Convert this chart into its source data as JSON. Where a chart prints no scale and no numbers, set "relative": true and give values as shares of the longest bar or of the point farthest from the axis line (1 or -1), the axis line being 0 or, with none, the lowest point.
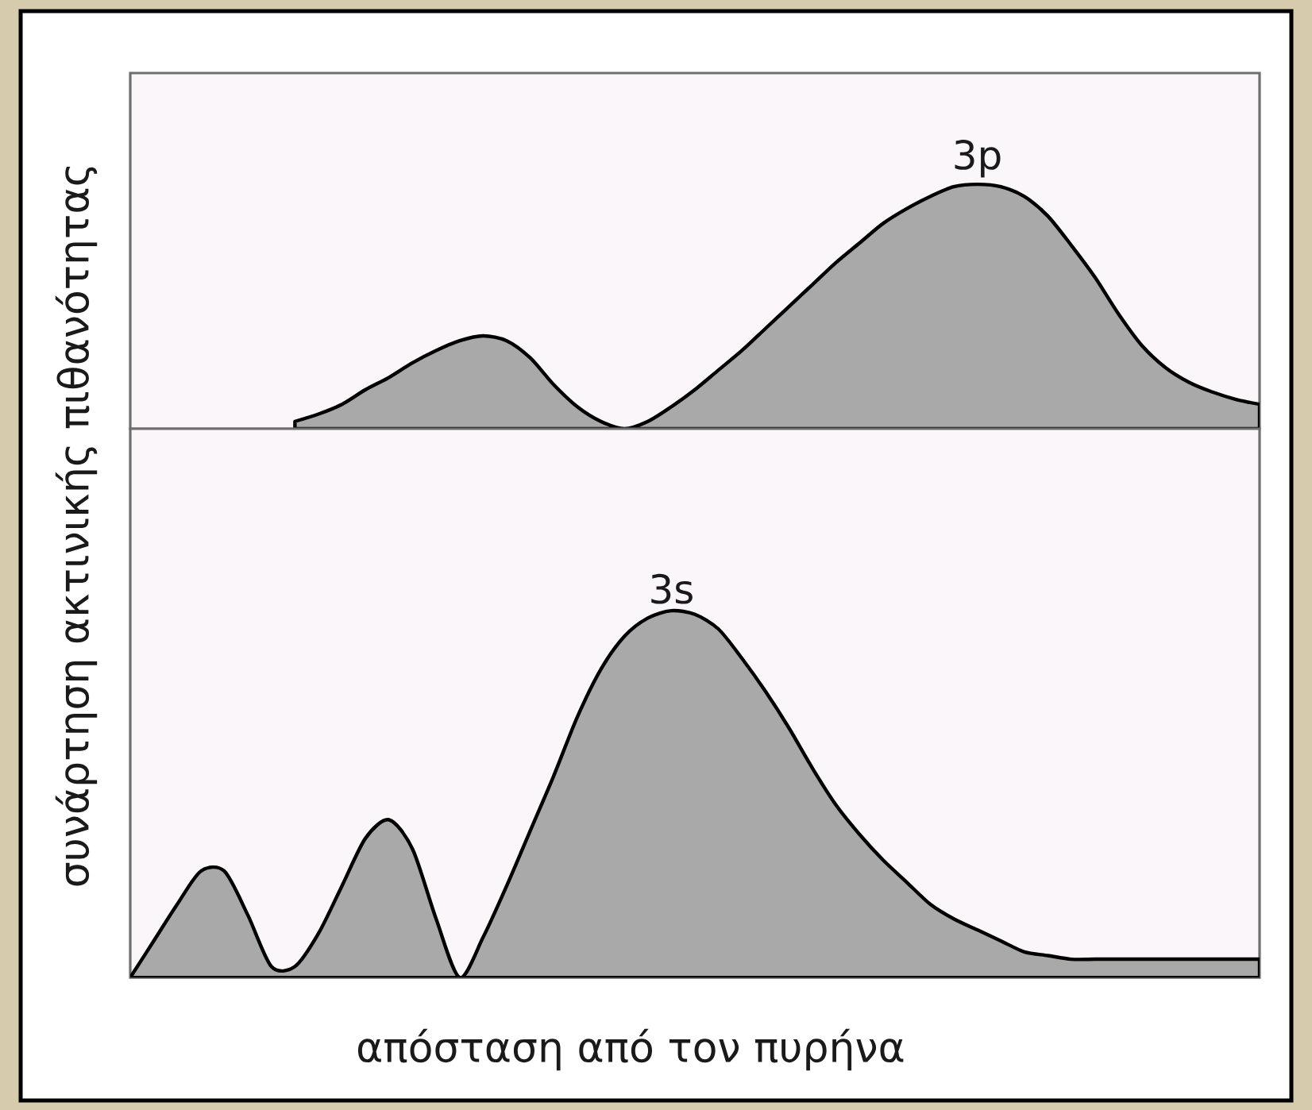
{
  "chart_data": [
    {
      "type": "area",
      "ylabel": "συνάρτηση ακτινικής πιθανότητας",
      "relative": true,
      "categories": [
        null,
        null,
        null,
        null,
        null,
        null,
        null,
        null,
        null,
        null,
        null,
        null,
        null,
        null,
        null,
        null,
        null,
        null,
        null,
        null,
        null,
        null,
        null,
        null,
        null,
        null,
        null,
        null,
        null,
        null,
        null,
        null,
        null,
        null,
        null,
        null,
        null,
        null,
        null,
        null,
        null,
        null,
        null,
        null,
        null,
        null,
        null,
        null,
        null
      ],
      "series": [
        {
          "name": "3p",
          "color": "#a9a9a9",
          "values": [
            null,
            null,
            null,
            null,
            null,
            null,
            null,
            0.03,
            0.06,
            0.1,
            0.16,
            0.21,
            0.27,
            0.32,
            0.36,
            0.38,
            0.36,
            0.29,
            0.18,
            0.09,
            0.03,
            0,
            0.03,
            0.09,
            0.16,
            0.24,
            0.32,
            0.41,
            0.5,
            0.59,
            0.68,
            0.76,
            0.84,
            0.9,
            0.95,
            0.99,
            1,
            0.99,
            0.95,
            0.87,
            0.75,
            0.62,
            0.47,
            0.34,
            0.25,
            0.19,
            0.15,
            0.12,
            0.1
          ]
        }
      ]
    },
    {
      "type": "area",
      "xlabel": "απόσταση από τον πυρήνα",
      "relative": true,
      "categories": [
        null,
        null,
        null,
        null,
        null,
        null,
        null,
        null,
        null,
        null,
        null,
        null,
        null,
        null,
        null,
        null,
        null,
        null,
        null,
        null,
        null,
        null,
        null,
        null,
        null,
        null,
        null,
        null,
        null,
        null,
        null,
        null,
        null,
        null,
        null,
        null,
        null,
        null,
        null,
        null,
        null,
        null,
        null,
        null,
        null,
        null,
        null,
        null,
        null
      ],
      "series": [
        {
          "name": "3s",
          "color": "#a9a9a9",
          "values": [
            0,
            0.1,
            0.2,
            0.29,
            0.29,
            0.17,
            0.03,
            0.03,
            0.12,
            0.25,
            0.38,
            0.43,
            0.35,
            0.16,
            0,
            0.11,
            0.25,
            0.4,
            0.55,
            0.71,
            0.84,
            0.93,
            0.98,
            1,
            0.99,
            0.95,
            0.87,
            0.78,
            0.68,
            0.57,
            0.47,
            0.39,
            0.32,
            0.26,
            0.2,
            0.16,
            0.13,
            0.1,
            0.07,
            0.06,
            0.05,
            0.05,
            0.05,
            0.05,
            0.05,
            0.05,
            0.05,
            0.05,
            0.05
          ]
        }
      ]
    }
  ]
}
